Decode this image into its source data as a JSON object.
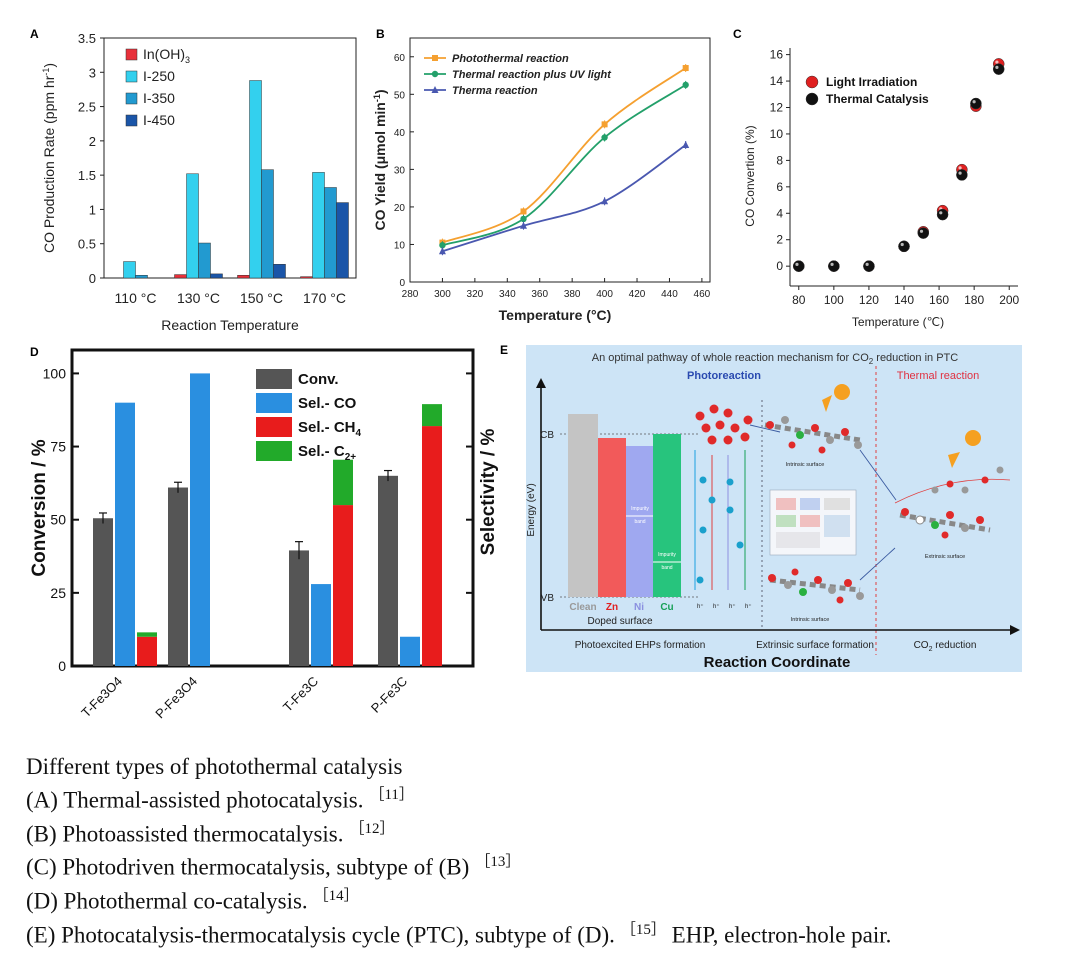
{
  "charts": {
    "A": {
      "panel_label": "A",
      "chart_data": {
        "type": "bar",
        "categories": [
          "110 °C",
          "130 °C",
          "150 °C",
          "170 °C"
        ],
        "series": [
          {
            "name": "In(OH)3",
            "color": "#e8303a",
            "values": [
              0.0,
              0.05,
              0.04,
              0.02
            ]
          },
          {
            "name": "I-250",
            "color": "#33d0ee",
            "values": [
              0.24,
              1.52,
              2.88,
              1.54
            ]
          },
          {
            "name": "I-350",
            "color": "#229ad0",
            "values": [
              0.04,
              0.51,
              1.58,
              1.32
            ]
          },
          {
            "name": "I-450",
            "color": "#1a55a8",
            "values": [
              0.0,
              0.06,
              0.2,
              1.1
            ]
          }
        ],
        "ylim": [
          0,
          3.5
        ],
        "yticks": [
          0,
          0.5,
          1,
          1.5,
          2,
          2.5,
          3,
          3.5
        ],
        "ytick_labels": [
          "0",
          "0.5",
          "1",
          "1.5",
          "2",
          "2.5",
          "3",
          "3.5"
        ],
        "ylabel_main": "CO Production Rate (ppm hr",
        "ylabel_sup": "-1",
        "ylabel_end": ")",
        "xlabel": "Reaction Temperature",
        "legend_position": "top-left"
      }
    },
    "B": {
      "panel_label": "B",
      "chart_data": {
        "type": "line",
        "x": [
          300,
          350,
          400,
          450
        ],
        "series": [
          {
            "name": "Photothermal reaction",
            "color": "#f5a030",
            "marker": "square",
            "values": [
              10.5,
              18.8,
              42.0,
              57.0
            ]
          },
          {
            "name": "Thermal reaction plus UV light",
            "color": "#23a06a",
            "marker": "circle",
            "values": [
              9.8,
              16.8,
              38.5,
              52.5
            ]
          },
          {
            "name": "Therma reaction",
            "color": "#4a58b0",
            "marker": "triangle",
            "values": [
              8.2,
              15.0,
              21.5,
              36.5
            ]
          }
        ],
        "xlim": [
          280,
          465
        ],
        "ylim": [
          0,
          65
        ],
        "xticks": [
          280,
          300,
          320,
          340,
          360,
          380,
          400,
          420,
          440,
          460
        ],
        "xtick_labels": [
          "280",
          "300",
          "320",
          "340",
          "360",
          "380",
          "400",
          "420",
          "440",
          "460"
        ],
        "yticks": [
          0,
          10,
          20,
          30,
          40,
          50,
          60
        ],
        "ytick_labels": [
          "0",
          "10",
          "20",
          "30",
          "40",
          "50",
          "60"
        ],
        "xlabel": "Temperature (°C)",
        "ylabel": "CO Yield (μmol min",
        "ylabel_sup": "-1",
        "ylabel_end": ")",
        "legend_position": "top-left"
      }
    },
    "C": {
      "panel_label": "C",
      "chart_data": {
        "type": "scatter",
        "series": [
          {
            "name": "Light Irradiation",
            "color": "#e02020",
            "x": [
              80,
              100,
              120,
              140,
              151,
              162,
              173,
              181,
              194
            ],
            "values": [
              0,
              0,
              0,
              1.5,
              2.6,
              4.2,
              7.3,
              12.1,
              15.3
            ]
          },
          {
            "name": "Thermal Catalysis",
            "color": "#111111",
            "x": [
              80,
              100,
              120,
              140,
              151,
              162,
              173,
              181,
              194
            ],
            "values": [
              0,
              0,
              0,
              1.5,
              2.5,
              3.9,
              6.9,
              12.3,
              14.9
            ]
          }
        ],
        "xlim": [
          75,
          205
        ],
        "ylim": [
          -1.5,
          16.5
        ],
        "xticks": [
          80,
          100,
          120,
          140,
          160,
          180,
          200
        ],
        "xtick_labels": [
          "80",
          "100",
          "120",
          "140",
          "160",
          "180",
          "200"
        ],
        "yticks": [
          0,
          2,
          4,
          6,
          8,
          10,
          12,
          14,
          16
        ],
        "ytick_labels": [
          "0",
          "2",
          "4",
          "6",
          "8",
          "10",
          "12",
          "14",
          "16"
        ],
        "xlabel": "Temperature (℃)",
        "ylabel": "CO Convertion (%)",
        "legend_position": "top-left"
      }
    },
    "D": {
      "panel_label": "D",
      "chart_data": {
        "type": "bar",
        "categories": [
          "T-Fe3O4",
          "P-Fe3O4",
          "T-Fe3C",
          "P-Fe3C"
        ],
        "series": [
          {
            "name": "Conv.",
            "color": "#555555",
            "values": [
              50.5,
              61.0,
              39.5,
              65.0
            ],
            "errors": [
              1.8,
              1.8,
              3.0,
              1.8
            ]
          },
          {
            "name": "Sel.- CO",
            "color": "#2a8fe0",
            "values": [
              90,
              100,
              28,
              10
            ]
          },
          {
            "name": "Sel.- CH4",
            "color": "#e81c1c",
            "values": [
              10,
              0,
              55,
              82
            ]
          },
          {
            "name": "Sel.- C2+",
            "color": "#22aa2a",
            "values": [
              1.5,
              0,
              15.5,
              7.5
            ]
          }
        ],
        "ylim": [
          0,
          108
        ],
        "yticks": [
          0,
          25,
          50,
          75,
          100
        ],
        "ytick_labels": [
          "0",
          "25",
          "50",
          "75",
          "100"
        ],
        "ylabel": "Conversion / %",
        "ylabel_right": "Selectivity / %",
        "legend_position": "top-right",
        "legend_entries": [
          {
            "main": "Conv.",
            "sub": ""
          },
          {
            "main": "Sel.- CO",
            "sub": ""
          },
          {
            "main": "Sel.- CH",
            "sub": "4"
          },
          {
            "main": "Sel.- C",
            "sub": "2+"
          }
        ]
      }
    }
  },
  "panelE": {
    "panel_label": "E",
    "title_main": "An optimal pathway of whole reaction mechanism for CO",
    "title_sub": "2",
    "title_end": " reduction in PTC",
    "photoreaction": "Photoreaction",
    "thermal_reaction": "Thermal reaction",
    "energy_axis": "Energy (eV)",
    "cb": "CB",
    "vb": "VB",
    "bars": [
      {
        "label": "Clean",
        "color": "#c4c4c4",
        "label_color": "#999999"
      },
      {
        "label": "Zn",
        "color": "#f25a5a",
        "label_color": "#e02020"
      },
      {
        "label": "Ni",
        "color": "#9fa8f0",
        "label_color": "#8a90e0"
      },
      {
        "label": "Cu",
        "color": "#27c47d",
        "label_color": "#18a058"
      }
    ],
    "impurity_band_1": "Impurity",
    "impurity_band_2": "band",
    "doped_surface": "Doped surface",
    "intrinsic_surface": "Intrinsic surface",
    "extrinsic_surface": "Extrinsic surface",
    "stage1": "Photoexcited EHPs formation",
    "stage2": "Extrinsic surface formation",
    "stage3_main": "CO",
    "stage3_sub": "2",
    "stage3_end": " reduction",
    "x_axis": "Reaction Coordinate",
    "hole_label": "h⁺"
  },
  "caption": {
    "title": "Different types of photothermal catalysis",
    "lines": [
      {
        "text": "(A) Thermal-assisted photocatalysis.",
        "ref": "［11］",
        "after": ""
      },
      {
        "text": "(B) Photoassisted thermocatalysis.",
        "ref": "［12］",
        "after": ""
      },
      {
        "text": "(C) Photodriven thermocatalysis, subtype of (B)",
        "ref": "［13］",
        "after": ""
      },
      {
        "text": "(D) Photothermal co-catalysis.",
        "ref": "［14］",
        "after": ""
      },
      {
        "text": "(E) Photocatalysis-thermocatalysis cycle (PTC), subtype of (D).",
        "ref": "［15］",
        "after": " EHP, electron-hole pair."
      }
    ]
  }
}
